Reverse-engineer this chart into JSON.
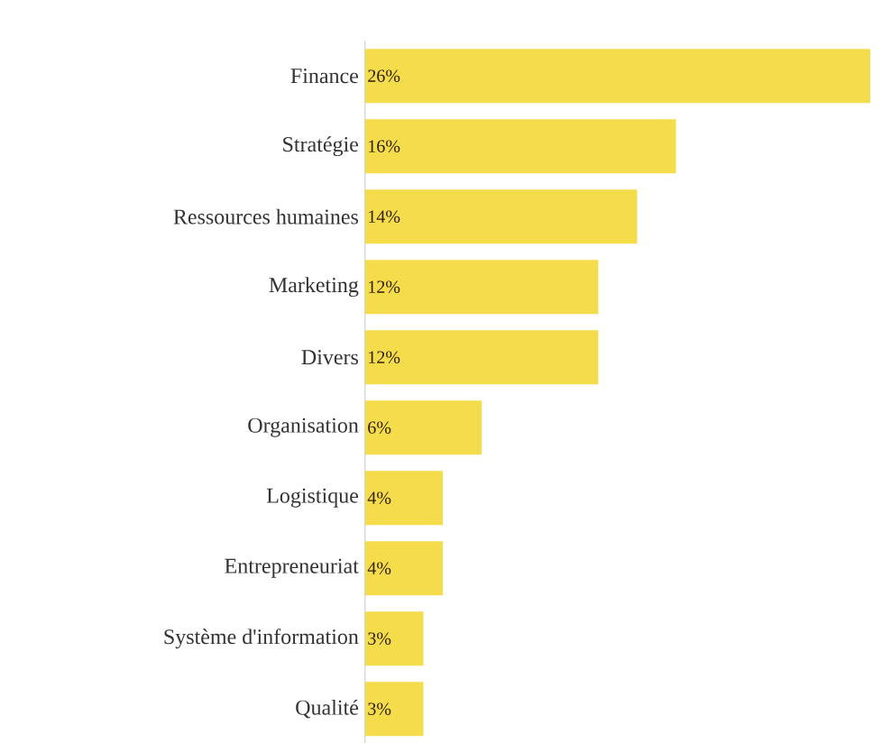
{
  "chart_data": {
    "type": "bar",
    "orientation": "horizontal",
    "categories": [
      "Finance",
      "Stratégie",
      "Ressources humaines",
      "Marketing",
      "Divers",
      "Organisation",
      "Logistique",
      "Entrepreneuriat",
      "Système d'information",
      "Qualité"
    ],
    "values": [
      26,
      16,
      14,
      12,
      12,
      6,
      4,
      4,
      3,
      3
    ],
    "value_labels": [
      "26%",
      "16%",
      "14%",
      "12%",
      "12%",
      "6%",
      "4%",
      "4%",
      "3%",
      "3%"
    ],
    "color": "#f5dc4a"
  }
}
